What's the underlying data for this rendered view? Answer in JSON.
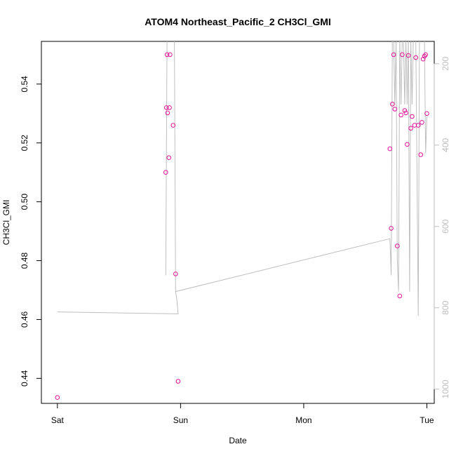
{
  "chart_data": {
    "type": "scatter",
    "title": "ATOM4 Northeast_Pacific_2 CH3Cl_GMI",
    "xlabel": "Date",
    "ylabel": "CH3Cl_GMI",
    "x_ticks": [
      {
        "label": "Sat",
        "value": 0
      },
      {
        "label": "Sun",
        "value": 1
      },
      {
        "label": "Mon",
        "value": 2
      },
      {
        "label": "Tue",
        "value": 3
      }
    ],
    "xlim": [
      -0.13,
      3.06
    ],
    "ylim": [
      0.4315,
      0.5545
    ],
    "y_ticks": [
      0.44,
      0.46,
      0.48,
      0.5,
      0.52,
      0.54
    ],
    "y_tick_labels": [
      "0.44",
      "0.46",
      "0.48",
      "0.50",
      "0.52",
      "0.54"
    ],
    "y2_ticks": [
      200,
      400,
      600,
      800,
      1000
    ],
    "y2_tick_labels": [
      "200",
      "400",
      "600",
      "800",
      "1000"
    ],
    "y2lim": [
      1035,
      145
    ],
    "colors": {
      "points": "#e0109a",
      "pressure_line": "#bebebe",
      "axis": "#000000"
    },
    "grid": false,
    "series": [
      {
        "points": [
          [
            0.0,
            0.4335
          ],
          [
            0.88,
            0.51
          ],
          [
            0.885,
            0.532
          ],
          [
            0.89,
            0.55
          ],
          [
            0.895,
            0.5302
          ],
          [
            0.905,
            0.515
          ],
          [
            0.91,
            0.532
          ],
          [
            0.915,
            0.55
          ],
          [
            0.94,
            0.526
          ],
          [
            0.96,
            0.4755
          ],
          [
            0.98,
            0.439
          ],
          [
            2.7,
            0.518
          ],
          [
            2.71,
            0.491
          ],
          [
            2.72,
            0.5332
          ],
          [
            2.73,
            0.55
          ],
          [
            2.74,
            0.5315
          ],
          [
            2.76,
            0.485
          ],
          [
            2.78,
            0.468
          ],
          [
            2.79,
            0.5295
          ],
          [
            2.8,
            0.55
          ],
          [
            2.82,
            0.531
          ],
          [
            2.83,
            0.5302
          ],
          [
            2.84,
            0.5195
          ],
          [
            2.85,
            0.5497
          ],
          [
            2.87,
            0.525
          ],
          [
            2.88,
            0.529
          ],
          [
            2.9,
            0.526
          ],
          [
            2.91,
            0.549
          ],
          [
            2.93,
            0.526
          ],
          [
            2.95,
            0.516
          ],
          [
            2.96,
            0.527
          ],
          [
            2.97,
            0.5485
          ],
          [
            2.98,
            0.5495
          ],
          [
            2.99,
            0.55
          ],
          [
            3.0,
            0.53
          ]
        ]
      },
      {
        "pressure": [
          [
            0.0,
            810
          ],
          [
            0.98,
            815
          ],
          [
            0.97,
            780
          ],
          [
            0.96,
            760
          ],
          [
            0.95,
            140
          ],
          [
            0.93,
            140
          ],
          [
            0.92,
            140
          ],
          [
            0.91,
            140
          ],
          [
            0.9,
            140
          ],
          [
            0.89,
            140
          ],
          [
            0.88,
            720
          ],
          [
            0.89,
            140
          ],
          [
            0.91,
            140
          ],
          [
            0.92,
            140
          ],
          [
            0.93,
            140
          ],
          [
            0.95,
            140
          ],
          [
            0.96,
            760
          ],
          [
            2.7,
            630
          ],
          [
            2.71,
            720
          ],
          [
            2.72,
            140
          ],
          [
            2.73,
            140
          ],
          [
            2.74,
            300
          ],
          [
            2.75,
            140
          ],
          [
            2.76,
            680
          ],
          [
            2.77,
            760
          ],
          [
            2.78,
            140
          ],
          [
            2.79,
            300
          ],
          [
            2.8,
            140
          ],
          [
            2.81,
            140
          ],
          [
            2.82,
            300
          ],
          [
            2.83,
            140
          ],
          [
            2.84,
            300
          ],
          [
            2.85,
            140
          ],
          [
            2.86,
            760
          ],
          [
            2.87,
            140
          ],
          [
            2.88,
            300
          ],
          [
            2.89,
            140
          ],
          [
            2.9,
            140
          ],
          [
            2.91,
            140
          ],
          [
            2.93,
            820
          ],
          [
            2.94,
            140
          ],
          [
            2.95,
            140
          ],
          [
            2.96,
            140
          ],
          [
            2.97,
            140
          ],
          [
            2.98,
            140
          ],
          [
            2.99,
            420
          ],
          [
            3.0,
            330
          ]
        ]
      }
    ]
  }
}
